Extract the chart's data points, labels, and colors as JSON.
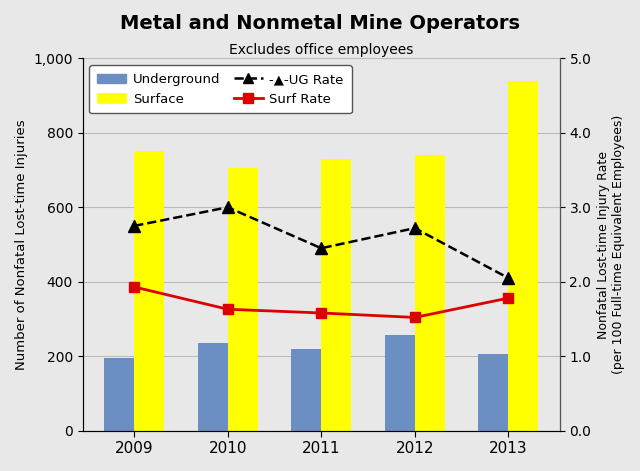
{
  "title": "Metal and Nonmetal Mine Operators",
  "subtitle": "Excludes office employees",
  "years": [
    2009,
    2010,
    2011,
    2012,
    2013
  ],
  "underground": [
    195,
    235,
    220,
    258,
    205
  ],
  "surface": [
    750,
    705,
    730,
    740,
    940
  ],
  "ug_rate": [
    2.75,
    3.0,
    2.45,
    2.72,
    2.05
  ],
  "surf_rate": [
    1.93,
    1.63,
    1.58,
    1.52,
    1.78
  ],
  "bar_width": 0.32,
  "underground_color": "#6b8fc2",
  "surface_color": "#ffff00",
  "ug_rate_color": "#000000",
  "surf_rate_color": "#dd0000",
  "ylabel_left": "Number of Nonfatal Lost-time Injuries",
  "ylabel_right": "Nonfatal Lost-time Injury Rate\n(per 100 Full-time Equivalent Employees)",
  "ylim_left": [
    0,
    1000
  ],
  "ylim_right": [
    0.0,
    5.0
  ],
  "yticks_left": [
    0,
    200,
    400,
    600,
    800,
    1000
  ],
  "yticks_right": [
    0.0,
    1.0,
    2.0,
    3.0,
    4.0,
    5.0
  ],
  "ytick_labels_left": [
    "0",
    "200",
    "400",
    "600",
    "800",
    "1,000"
  ],
  "background_color": "#e8e8e8",
  "plot_bg_color": "#e8e8e8"
}
